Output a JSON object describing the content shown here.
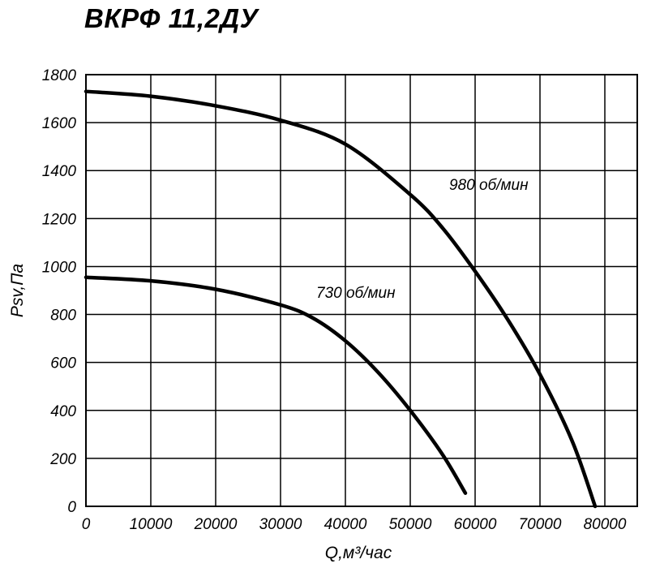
{
  "chart_data": {
    "type": "line",
    "title": "ВКРФ 11,2ДУ",
    "xlabel": "Q,м³/час",
    "ylabel": "Psv,Па",
    "xlim": [
      0,
      85000
    ],
    "ylim": [
      0,
      1800
    ],
    "x_ticks": [
      0,
      10000,
      20000,
      30000,
      40000,
      50000,
      60000,
      70000,
      80000
    ],
    "y_ticks": [
      0,
      200,
      400,
      600,
      800,
      1000,
      1200,
      1400,
      1600,
      1800
    ],
    "grid": true,
    "series": [
      {
        "name": "980 об/мин",
        "x": [
          0,
          10000,
          20000,
          30000,
          40000,
          50000,
          55000,
          60000,
          65000,
          70000,
          75000,
          78500
        ],
        "y": [
          1730,
          1710,
          1670,
          1610,
          1510,
          1300,
          1160,
          980,
          780,
          550,
          270,
          0
        ]
      },
      {
        "name": "730 об/мин",
        "x": [
          0,
          10000,
          20000,
          30000,
          35000,
          40000,
          45000,
          50000,
          55000,
          58500
        ],
        "y": [
          955,
          940,
          905,
          840,
          785,
          690,
          560,
          400,
          215,
          55
        ]
      }
    ]
  }
}
